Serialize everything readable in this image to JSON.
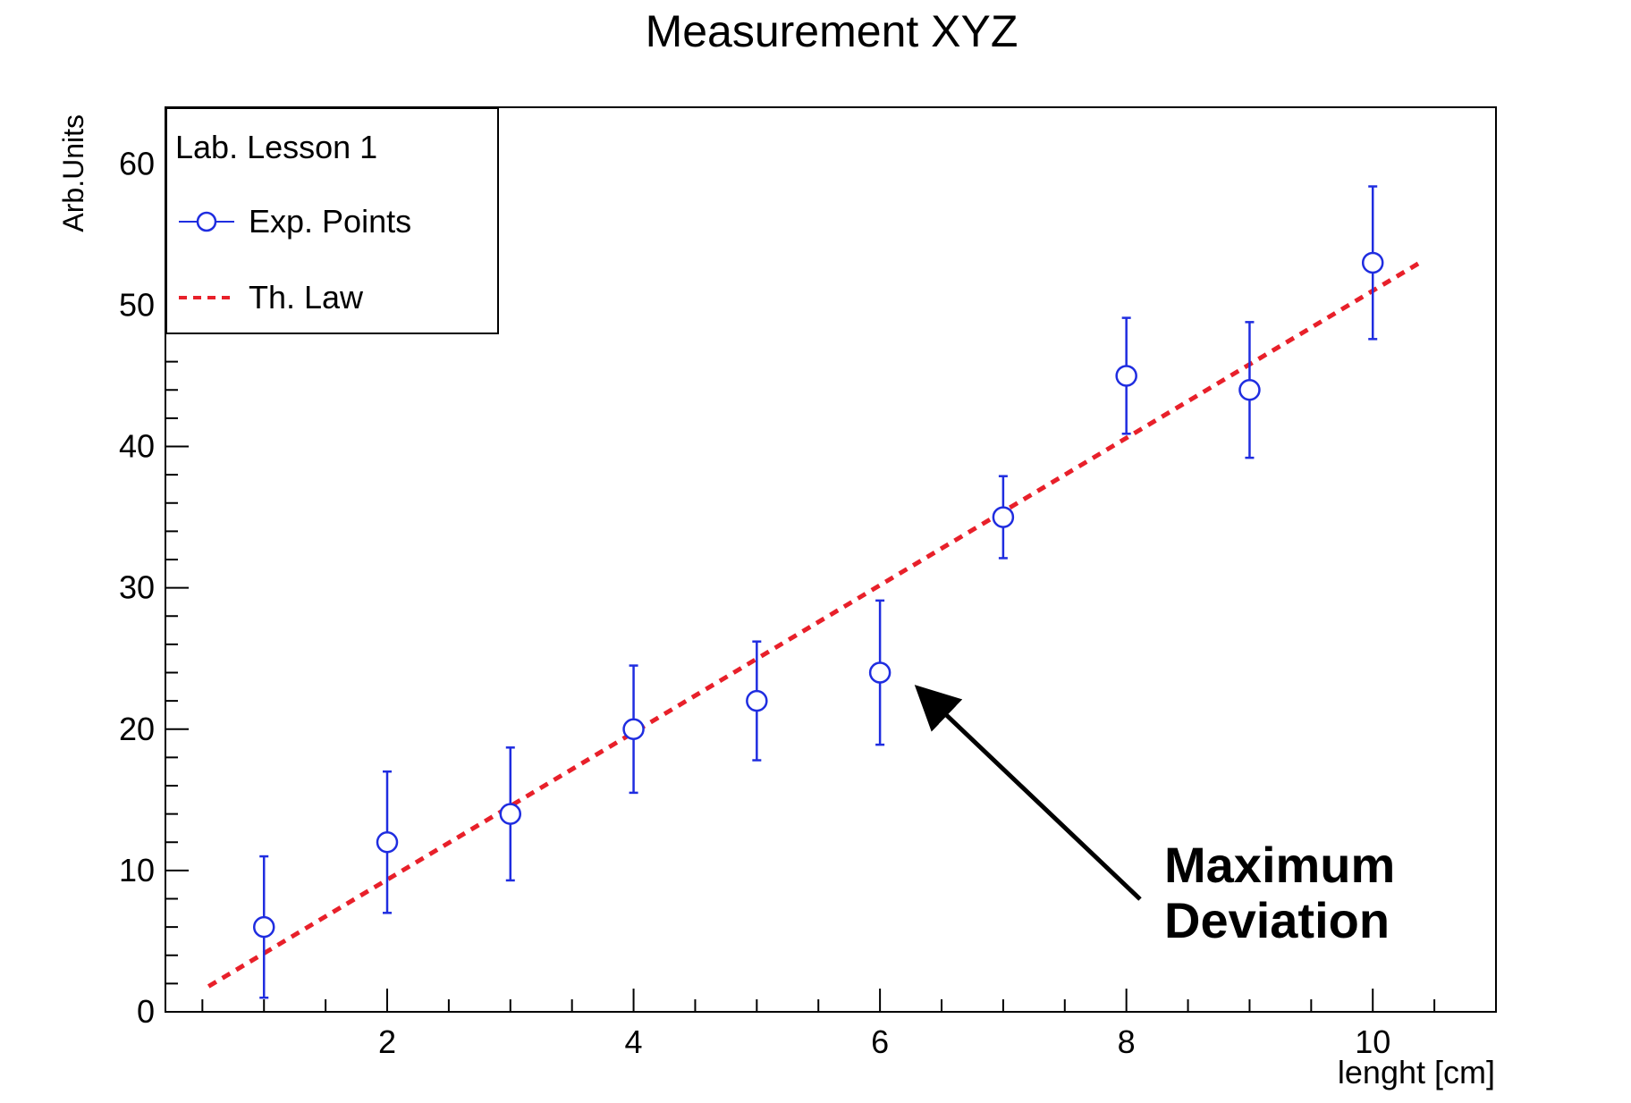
{
  "chart_data": {
    "type": "scatter",
    "title": "Measurement XYZ",
    "xlabel": "lenght [cm]",
    "ylabel": "Arb.Units",
    "xlim": [
      0.2,
      11.0
    ],
    "ylim": [
      0,
      64
    ],
    "x_ticks": [
      2,
      4,
      6,
      8,
      10
    ],
    "y_ticks": [
      0,
      10,
      20,
      30,
      40,
      50,
      60
    ],
    "legend": {
      "title": "Lab. Lesson 1",
      "placement": "top-left",
      "entries": [
        "Exp. Points",
        "Th. Law"
      ]
    },
    "series": [
      {
        "name": "Exp. Points",
        "kind": "points-with-errors",
        "color": "#1f2de0",
        "x": [
          1,
          2,
          3,
          4,
          5,
          6,
          7,
          8,
          9,
          10
        ],
        "y": [
          6,
          12,
          14,
          20,
          22,
          24,
          35,
          45,
          44,
          53
        ],
        "err": [
          5,
          5,
          4.7,
          4.5,
          4.2,
          5.1,
          2.9,
          4.1,
          4.8,
          5.4
        ]
      },
      {
        "name": "Th. Law",
        "kind": "dashed-line",
        "color": "#e8202a",
        "x": [
          0.55,
          10.4
        ],
        "y": [
          1.8,
          53.1
        ]
      }
    ],
    "annotation": {
      "text_line1": "Maximum",
      "text_line2": "Deviation",
      "points_to": {
        "x": 6,
        "y": 24
      }
    }
  }
}
